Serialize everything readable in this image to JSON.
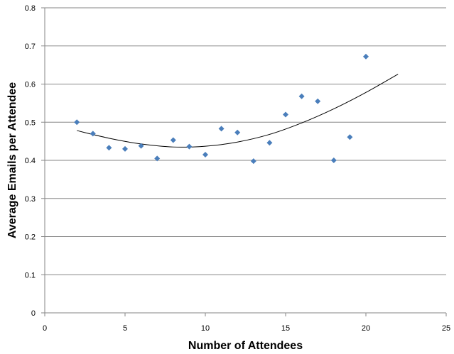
{
  "chart_data": {
    "type": "scatter",
    "title": "",
    "xlabel": "Number of Attendees",
    "ylabel": "Average Emails per Attendee",
    "xlim": [
      0,
      25
    ],
    "ylim": [
      0,
      0.8
    ],
    "x_ticks": [
      0,
      5,
      10,
      15,
      20,
      25
    ],
    "y_ticks": [
      0,
      0.1,
      0.2,
      0.3,
      0.4,
      0.5,
      0.6,
      0.7,
      0.8
    ],
    "y_tick_labels": [
      "0",
      "0.1",
      "0.2",
      "0.3",
      "0.4",
      "0.5",
      "0.6",
      "0.7",
      "0.8"
    ],
    "grid": "horizontal",
    "legend": "none",
    "series": [
      {
        "marker": "diamond",
        "color": "#4a7ebb",
        "points": [
          {
            "x": 2,
            "y": 0.5
          },
          {
            "x": 3,
            "y": 0.47
          },
          {
            "x": 4,
            "y": 0.433
          },
          {
            "x": 5,
            "y": 0.43
          },
          {
            "x": 6,
            "y": 0.438
          },
          {
            "x": 7,
            "y": 0.405
          },
          {
            "x": 8,
            "y": 0.453
          },
          {
            "x": 9,
            "y": 0.436
          },
          {
            "x": 10,
            "y": 0.415
          },
          {
            "x": 11,
            "y": 0.483
          },
          {
            "x": 12,
            "y": 0.473
          },
          {
            "x": 13,
            "y": 0.398
          },
          {
            "x": 14,
            "y": 0.446
          },
          {
            "x": 15,
            "y": 0.52
          },
          {
            "x": 16,
            "y": 0.568
          },
          {
            "x": 17,
            "y": 0.555
          },
          {
            "x": 18,
            "y": 0.4
          },
          {
            "x": 19,
            "y": 0.461
          },
          {
            "x": 20,
            "y": 0.672
          }
        ]
      }
    ],
    "trendline": {
      "type": "polynomial",
      "color": "#000000",
      "points": [
        {
          "x": 2,
          "y": 0.478
        },
        {
          "x": 4,
          "y": 0.458
        },
        {
          "x": 6,
          "y": 0.443
        },
        {
          "x": 8,
          "y": 0.435
        },
        {
          "x": 10,
          "y": 0.437
        },
        {
          "x": 12,
          "y": 0.448
        },
        {
          "x": 14,
          "y": 0.468
        },
        {
          "x": 16,
          "y": 0.498
        },
        {
          "x": 18,
          "y": 0.535
        },
        {
          "x": 20,
          "y": 0.578
        },
        {
          "x": 22,
          "y": 0.626
        }
      ]
    },
    "colors": {
      "gridline": "#868686",
      "axis": "#868686",
      "marker": "#4a7ebb"
    }
  }
}
